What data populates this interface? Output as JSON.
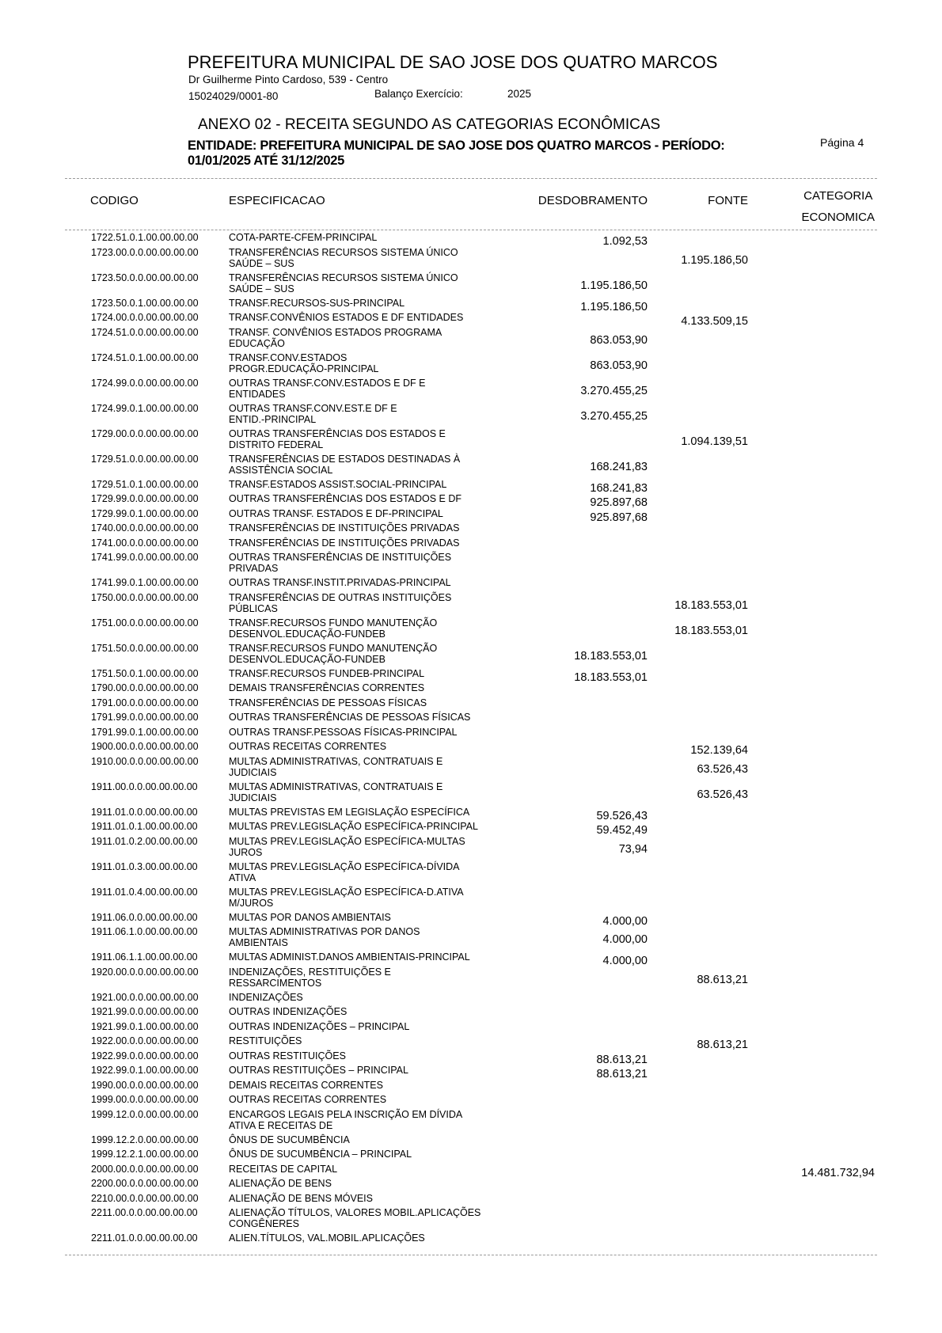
{
  "header": {
    "title": "PREFEITURA MUNICIPAL DE SAO JOSE DOS QUATRO MARCOS",
    "address": "Dr Guilherme Pinto Cardoso, 539 - Centro",
    "cnpj": "15024029/0001-80",
    "balanco_label": "Balanço Exercício:",
    "year": "2025",
    "annex": "ANEXO 02 - RECEITA SEGUNDO AS CATEGORIAS ECONÔMICAS",
    "entity": "ENTIDADE: PREFEITURA MUNICIPAL DE SAO JOSE DOS QUATRO MARCOS - PERÍODO:",
    "period": "01/01/2025 ATÉ 31/12/2025",
    "page": "Página 4"
  },
  "columns": {
    "codigo": "CODIGO",
    "especificacao": "ESPECIFICACAO",
    "desdobramento": "DESDOBRAMENTO",
    "fonte": "FONTE",
    "categoria": "CATEGORIA\nECONOMICA"
  },
  "rows": [
    [
      "1722.51.0.1.00.00.00.00",
      "COTA-PARTE-CFEM-PRINCIPAL",
      "1.092,53",
      "",
      ""
    ],
    [
      "1723.00.0.0.00.00.00.00",
      "TRANSFERÊNCIAS RECURSOS SISTEMA ÚNICO\nSAÚDE – SUS",
      "",
      "1.195.186,50",
      ""
    ],
    [
      "1723.50.0.0.00.00.00.00",
      "TRANSFERÊNCIAS RECURSOS SISTEMA ÚNICO\nSAÚDE – SUS",
      "1.195.186,50",
      "",
      ""
    ],
    [
      "1723.50.0.1.00.00.00.00",
      "TRANSF.RECURSOS-SUS-PRINCIPAL",
      "1.195.186,50",
      "",
      ""
    ],
    [
      "1724.00.0.0.00.00.00.00",
      "TRANSF.CONVÊNIOS ESTADOS E DF ENTIDADES",
      "",
      "4.133.509,15",
      ""
    ],
    [
      "1724.51.0.0.00.00.00.00",
      "TRANSF. CONVÊNIOS ESTADOS PROGRAMA\nEDUCAÇÃO",
      "863.053,90",
      "",
      ""
    ],
    [
      "1724.51.0.1.00.00.00.00",
      "TRANSF.CONV.ESTADOS\nPROGR.EDUCAÇÃO-PRINCIPAL",
      "863.053,90",
      "",
      ""
    ],
    [
      "1724.99.0.0.00.00.00.00",
      "OUTRAS TRANSF.CONV.ESTADOS E DF E\nENTIDADES",
      "3.270.455,25",
      "",
      ""
    ],
    [
      "1724.99.0.1.00.00.00.00",
      "OUTRAS TRANSF.CONV.EST.E DF E\nENTID.-PRINCIPAL",
      "3.270.455,25",
      "",
      ""
    ],
    [
      "1729.00.0.0.00.00.00.00",
      "OUTRAS TRANSFERÊNCIAS DOS ESTADOS E\nDISTRITO FEDERAL",
      "",
      "1.094.139,51",
      ""
    ],
    [
      "1729.51.0.0.00.00.00.00",
      "TRANSFERÊNCIAS DE ESTADOS DESTINADAS À\nASSISTÊNCIA SOCIAL",
      "168.241,83",
      "",
      ""
    ],
    [
      "1729.51.0.1.00.00.00.00",
      "TRANSF.ESTADOS  ASSIST.SOCIAL-PRINCIPAL",
      "168.241,83",
      "",
      ""
    ],
    [
      "1729.99.0.0.00.00.00.00",
      "OUTRAS TRANSFERÊNCIAS DOS ESTADOS E DF",
      "925.897,68",
      "",
      ""
    ],
    [
      "1729.99.0.1.00.00.00.00",
      "OUTRAS TRANSF. ESTADOS E DF-PRINCIPAL",
      "925.897,68",
      "",
      ""
    ],
    [
      "1740.00.0.0.00.00.00.00",
      "TRANSFERÊNCIAS DE INSTITUIÇÕES PRIVADAS",
      "",
      "",
      ""
    ],
    [
      "1741.00.0.0.00.00.00.00",
      "TRANSFERÊNCIAS DE INSTITUIÇÕES PRIVADAS",
      "",
      "",
      ""
    ],
    [
      "1741.99.0.0.00.00.00.00",
      "OUTRAS TRANSFERÊNCIAS DE INSTITUIÇÕES\nPRIVADAS",
      "",
      "",
      ""
    ],
    [
      "1741.99.0.1.00.00.00.00",
      "OUTRAS TRANSF.INSTIT.PRIVADAS-PRINCIPAL",
      "",
      "",
      ""
    ],
    [
      "1750.00.0.0.00.00.00.00",
      "TRANSFERÊNCIAS DE OUTRAS INSTITUIÇÕES\nPÚBLICAS",
      "",
      "18.183.553,01",
      ""
    ],
    [
      "1751.00.0.0.00.00.00.00",
      "TRANSF.RECURSOS FUNDO MANUTENÇÃO\nDESENVOL.EDUCAÇÃO-FUNDEB",
      "",
      "18.183.553,01",
      ""
    ],
    [
      "1751.50.0.0.00.00.00.00",
      "TRANSF.RECURSOS FUNDO MANUTENÇÃO\nDESENVOL.EDUCAÇÃO-FUNDEB",
      "18.183.553,01",
      "",
      ""
    ],
    [
      "1751.50.0.1.00.00.00.00",
      "TRANSF.RECURSOS FUNDEB-PRINCIPAL",
      "18.183.553,01",
      "",
      ""
    ],
    [
      "1790.00.0.0.00.00.00.00",
      "DEMAIS TRANSFERÊNCIAS CORRENTES",
      "",
      "",
      ""
    ],
    [
      "1791.00.0.0.00.00.00.00",
      "TRANSFERÊNCIAS DE PESSOAS FÍSICAS",
      "",
      "",
      ""
    ],
    [
      "1791.99.0.0.00.00.00.00",
      "OUTRAS TRANSFERÊNCIAS DE PESSOAS FÍSICAS",
      "",
      "",
      ""
    ],
    [
      "1791.99.0.1.00.00.00.00",
      "OUTRAS TRANSF.PESSOAS FÍSICAS-PRINCIPAL",
      "",
      "",
      ""
    ],
    [
      "1900.00.0.0.00.00.00.00",
      "OUTRAS RECEITAS CORRENTES",
      "",
      "152.139,64",
      ""
    ],
    [
      "1910.00.0.0.00.00.00.00",
      "MULTAS ADMINISTRATIVAS, CONTRATUAIS E\nJUDICIAIS",
      "",
      "63.526,43",
      ""
    ],
    [
      "1911.00.0.0.00.00.00.00",
      "MULTAS ADMINISTRATIVAS, CONTRATUAIS E\nJUDICIAIS",
      "",
      "63.526,43",
      ""
    ],
    [
      "1911.01.0.0.00.00.00.00",
      "MULTAS PREVISTAS EM LEGISLAÇÃO ESPECÍFICA",
      "59.526,43",
      "",
      ""
    ],
    [
      "1911.01.0.1.00.00.00.00",
      "MULTAS PREV.LEGISLAÇÃO ESPECÍFICA-PRINCIPAL",
      "59.452,49",
      "",
      ""
    ],
    [
      "1911.01.0.2.00.00.00.00",
      "MULTAS PREV.LEGISLAÇÃO ESPECÍFICA-MULTAS\nJUROS",
      "73,94",
      "",
      ""
    ],
    [
      "1911.01.0.3.00.00.00.00",
      "MULTAS PREV.LEGISLAÇÃO ESPECÍFICA-DÍVIDA\nATIVA",
      "",
      "",
      ""
    ],
    [
      "1911.01.0.4.00.00.00.00",
      "MULTAS PREV.LEGISLAÇÃO ESPECÍFICA-D.ATIVA\nM/JUROS",
      "",
      "",
      ""
    ],
    [
      "1911.06.0.0.00.00.00.00",
      "MULTAS POR DANOS AMBIENTAIS",
      "4.000,00",
      "",
      ""
    ],
    [
      "1911.06.1.0.00.00.00.00",
      "MULTAS ADMINISTRATIVAS POR DANOS\nAMBIENTAIS",
      "4.000,00",
      "",
      ""
    ],
    [
      "1911.06.1.1.00.00.00.00",
      "MULTAS ADMINIST.DANOS AMBIENTAIS-PRINCIPAL",
      "4.000,00",
      "",
      ""
    ],
    [
      "1920.00.0.0.00.00.00.00",
      "INDENIZAÇÕES, RESTITUIÇÕES E\nRESSARCIMENTOS",
      "",
      "88.613,21",
      ""
    ],
    [
      "1921.00.0.0.00.00.00.00",
      "INDENIZAÇÕES",
      "",
      "",
      ""
    ],
    [
      "1921.99.0.0.00.00.00.00",
      "OUTRAS INDENIZAÇÕES",
      "",
      "",
      ""
    ],
    [
      "1921.99.0.1.00.00.00.00",
      "OUTRAS INDENIZAÇÕES – PRINCIPAL",
      "",
      "",
      ""
    ],
    [
      "1922.00.0.0.00.00.00.00",
      "RESTITUIÇÕES",
      "",
      "88.613,21",
      ""
    ],
    [
      "1922.99.0.0.00.00.00.00",
      "OUTRAS RESTITUIÇÕES",
      "88.613,21",
      "",
      ""
    ],
    [
      "1922.99.0.1.00.00.00.00",
      "OUTRAS RESTITUIÇÕES – PRINCIPAL",
      "88.613,21",
      "",
      ""
    ],
    [
      "1990.00.0.0.00.00.00.00",
      "DEMAIS RECEITAS CORRENTES",
      "",
      "",
      ""
    ],
    [
      "1999.00.0.0.00.00.00.00",
      "OUTRAS RECEITAS CORRENTES",
      "",
      "",
      ""
    ],
    [
      "1999.12.0.0.00.00.00.00",
      "ENCARGOS LEGAIS PELA INSCRIÇÃO EM DÍVIDA\nATIVA E RECEITAS DE",
      "",
      "",
      ""
    ],
    [
      "1999.12.2.0.00.00.00.00",
      "ÔNUS DE SUCUMBÊNCIA",
      "",
      "",
      ""
    ],
    [
      "1999.12.2.1.00.00.00.00",
      "ÔNUS DE SUCUMBÊNCIA – PRINCIPAL",
      "",
      "",
      ""
    ],
    [
      "2000.00.0.0.00.00.00.00",
      "RECEITAS DE CAPITAL",
      "",
      "",
      "14.481.732,94"
    ],
    [
      "2200.00.0.0.00.00.00.00",
      "ALIENAÇÃO DE BENS",
      "",
      "",
      ""
    ],
    [
      "2210.00.0.0.00.00.00.00",
      "ALIENAÇÃO DE BENS MÓVEIS",
      "",
      "",
      ""
    ],
    [
      "2211.00.0.0.00.00.00.00",
      "ALIENAÇÃO TÍTULOS, VALORES MOBIL.APLICAÇÕES\nCONGÊNERES",
      "",
      "",
      ""
    ],
    [
      "2211.01.0.0.00.00.00.00",
      "ALIEN.TÍTULOS, VAL.MOBIL.APLICAÇÕES",
      "",
      "",
      ""
    ]
  ]
}
